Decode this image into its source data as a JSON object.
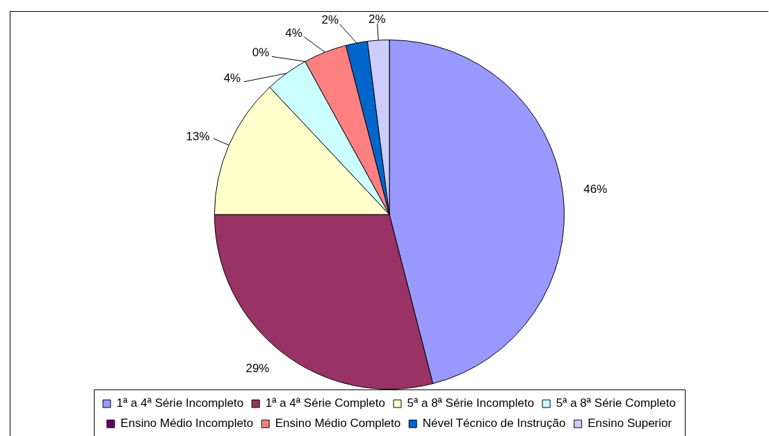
{
  "chart_data": {
    "type": "pie",
    "categories": [
      "1ª a 4ª Série Incompleto",
      "1ª a 4ª Série Completo",
      "5ª a 8ª Série Incompleto",
      "5ª a 8ª Série Completo",
      "Ensino Médio Incompleto",
      "Ensino Médio Completo",
      "Nével Técnico de Instrução",
      "Ensino Superior"
    ],
    "values": [
      46,
      29,
      13,
      4,
      0,
      4,
      2,
      2
    ],
    "value_labels": [
      "46%",
      "29%",
      "13%",
      "4%",
      "0%",
      "4%",
      "2%",
      "2%"
    ],
    "colors": [
      "#9999ff",
      "#993366",
      "#ffffcc",
      "#ccffff",
      "#660066",
      "#ff8080",
      "#0066cc",
      "#ccccff"
    ],
    "legend": "bottom"
  }
}
